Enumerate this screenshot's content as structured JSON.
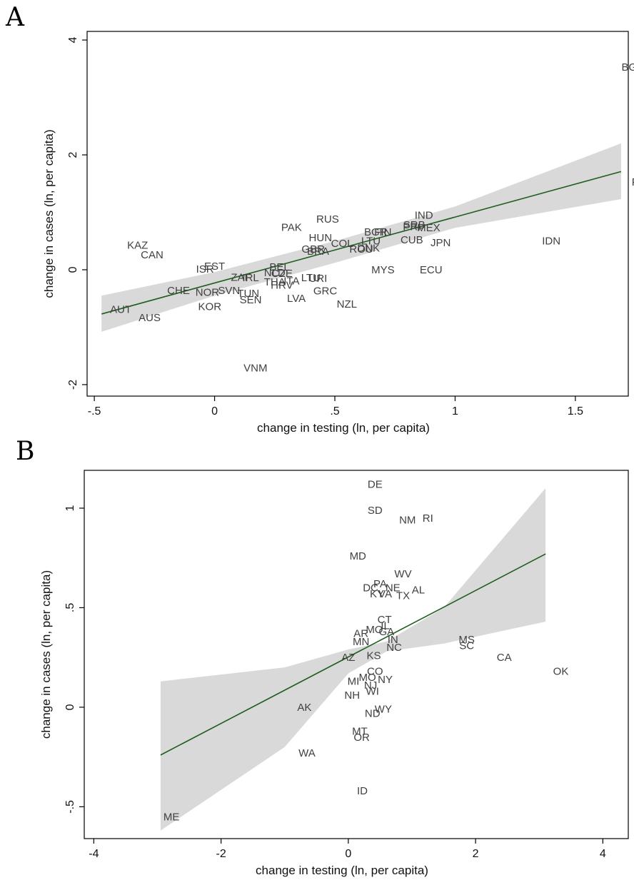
{
  "chart_data": [
    {
      "panel": "A",
      "type": "scatter",
      "xlabel": "change in testing (ln, per capita)",
      "ylabel": "change in cases (ln, per capita)",
      "xlim": [
        -0.53,
        1.72
      ],
      "ylim": [
        -2.2,
        4.15
      ],
      "xticks": [
        -0.5,
        0,
        0.5,
        1,
        1.5
      ],
      "xtick_labels": [
        "-.5",
        "0",
        ".5",
        "1",
        "1.5"
      ],
      "yticks": [
        -2,
        0,
        2,
        4
      ],
      "ytick_labels": [
        "-2",
        "0",
        "2",
        "4"
      ],
      "fit_line": {
        "x": [
          -0.47,
          1.69
        ],
        "y": [
          -0.77,
          1.71
        ]
      },
      "ci_band": {
        "x": [
          -0.47,
          0.0,
          0.5,
          1.0,
          1.69
        ],
        "upper": [
          -0.45,
          -0.04,
          0.5,
          1.1,
          2.2
        ],
        "lower": [
          -1.08,
          -0.45,
          0.12,
          0.73,
          1.23
        ]
      },
      "grid": false,
      "points": [
        {
          "label": "BGD",
          "x": 1.74,
          "y": 3.53
        },
        {
          "label": "PER",
          "x": 1.78,
          "y": 1.53
        },
        {
          "label": "IDN",
          "x": 1.4,
          "y": 0.5
        },
        {
          "label": "IND",
          "x": 0.87,
          "y": 0.95
        },
        {
          "label": "SRB",
          "x": 0.83,
          "y": 0.78
        },
        {
          "label": "PRI",
          "x": 0.82,
          "y": 0.75
        },
        {
          "label": "MEX",
          "x": 0.89,
          "y": 0.73
        },
        {
          "label": "CUB",
          "x": 0.82,
          "y": 0.52
        },
        {
          "label": "JPN",
          "x": 0.94,
          "y": 0.47
        },
        {
          "label": "MYS",
          "x": 0.7,
          "y": 0.0
        },
        {
          "label": "ECU",
          "x": 0.9,
          "y": 0.0
        },
        {
          "label": "RUS",
          "x": 0.47,
          "y": 0.88
        },
        {
          "label": "PAK",
          "x": 0.32,
          "y": 0.74
        },
        {
          "label": "HUN",
          "x": 0.44,
          "y": 0.56
        },
        {
          "label": "BGR",
          "x": 0.67,
          "y": 0.66
        },
        {
          "label": "FIN",
          "x": 0.7,
          "y": 0.66
        },
        {
          "label": "COL",
          "x": 0.53,
          "y": 0.46
        },
        {
          "label": "DNK",
          "x": 0.64,
          "y": 0.38
        },
        {
          "label": "ROU",
          "x": 0.61,
          "y": 0.36
        },
        {
          "label": "LTU",
          "x": 0.65,
          "y": 0.5
        },
        {
          "label": "GBR",
          "x": 0.41,
          "y": 0.36
        },
        {
          "label": "BRA",
          "x": 0.43,
          "y": 0.32
        },
        {
          "label": "KAZ",
          "x": -0.32,
          "y": 0.43
        },
        {
          "label": "CAN",
          "x": -0.26,
          "y": 0.26
        },
        {
          "label": "EST",
          "x": 0.0,
          "y": 0.06
        },
        {
          "label": "ISR",
          "x": -0.04,
          "y": 0.01
        },
        {
          "label": "BEL",
          "x": 0.27,
          "y": 0.05
        },
        {
          "label": "NLD",
          "x": 0.25,
          "y": -0.05
        },
        {
          "label": "CZE",
          "x": 0.28,
          "y": -0.06
        },
        {
          "label": "ZAF",
          "x": 0.11,
          "y": -0.13
        },
        {
          "label": "IRL",
          "x": 0.15,
          "y": -0.14
        },
        {
          "label": "THA",
          "x": 0.25,
          "y": -0.21
        },
        {
          "label": "ITA",
          "x": 0.32,
          "y": -0.19
        },
        {
          "label": "HRV",
          "x": 0.28,
          "y": -0.27
        },
        {
          "label": "LTU",
          "x": 0.4,
          "y": -0.14
        },
        {
          "label": "URI",
          "x": 0.43,
          "y": -0.15
        },
        {
          "label": "GRC",
          "x": 0.46,
          "y": -0.37
        },
        {
          "label": "LVA",
          "x": 0.34,
          "y": -0.5
        },
        {
          "label": "NZL",
          "x": 0.55,
          "y": -0.6
        },
        {
          "label": "CHE",
          "x": -0.15,
          "y": -0.36
        },
        {
          "label": "NOR",
          "x": -0.03,
          "y": -0.39
        },
        {
          "label": "SVN",
          "x": 0.06,
          "y": -0.36
        },
        {
          "label": "TUN",
          "x": 0.14,
          "y": -0.41
        },
        {
          "label": "SEN",
          "x": 0.15,
          "y": -0.52
        },
        {
          "label": "KOR",
          "x": -0.02,
          "y": -0.64
        },
        {
          "label": "AUT",
          "x": -0.39,
          "y": -0.69
        },
        {
          "label": "AUS",
          "x": -0.27,
          "y": -0.83
        },
        {
          "label": "VNM",
          "x": 0.17,
          "y": -1.71
        }
      ]
    },
    {
      "panel": "B",
      "type": "scatter",
      "xlabel": "change in testing (ln, per capita)",
      "ylabel": "change in cases (ln, per capita)",
      "xlim": [
        -4.15,
        4.4
      ],
      "ylim": [
        -0.66,
        1.19
      ],
      "xticks": [
        -4,
        -2,
        0,
        2,
        4
      ],
      "xtick_labels": [
        "-4",
        "-2",
        "0",
        "2",
        "4"
      ],
      "yticks": [
        -0.5,
        0,
        0.5,
        1
      ],
      "ytick_labels": [
        "-.5",
        "0",
        ".5",
        "1"
      ],
      "fit_line": {
        "x": [
          -2.95,
          3.1
        ],
        "y": [
          -0.24,
          0.77
        ]
      },
      "ci_band": {
        "x": [
          -2.95,
          -1.0,
          0.0,
          0.6,
          1.5,
          3.1
        ],
        "upper": [
          0.13,
          0.2,
          0.29,
          0.33,
          0.5,
          1.1
        ],
        "lower": [
          -0.62,
          -0.2,
          0.17,
          0.28,
          0.32,
          0.43
        ]
      },
      "grid": false,
      "points": [
        {
          "label": "DE",
          "x": 0.42,
          "y": 1.12
        },
        {
          "label": "SD",
          "x": 0.42,
          "y": 0.99
        },
        {
          "label": "NM",
          "x": 0.93,
          "y": 0.94
        },
        {
          "label": "RI",
          "x": 1.25,
          "y": 0.95
        },
        {
          "label": "MD",
          "x": 0.15,
          "y": 0.76
        },
        {
          "label": "WV",
          "x": 0.86,
          "y": 0.67
        },
        {
          "label": "PA",
          "x": 0.5,
          "y": 0.62
        },
        {
          "label": "DC",
          "x": 0.35,
          "y": 0.6
        },
        {
          "label": "NE",
          "x": 0.7,
          "y": 0.6
        },
        {
          "label": "KY",
          "x": 0.45,
          "y": 0.57
        },
        {
          "label": "VA",
          "x": 0.58,
          "y": 0.57
        },
        {
          "label": "TX",
          "x": 0.86,
          "y": 0.56
        },
        {
          "label": "AL",
          "x": 1.1,
          "y": 0.59
        },
        {
          "label": "CT",
          "x": 0.57,
          "y": 0.44
        },
        {
          "label": "MO",
          "x": 0.41,
          "y": 0.39
        },
        {
          "label": "GA",
          "x": 0.6,
          "y": 0.38
        },
        {
          "label": "AR",
          "x": 0.2,
          "y": 0.37
        },
        {
          "label": "IL",
          "x": 0.58,
          "y": 0.41
        },
        {
          "label": "MN",
          "x": 0.2,
          "y": 0.33
        },
        {
          "label": "IN",
          "x": 0.7,
          "y": 0.34
        },
        {
          "label": "NC",
          "x": 0.72,
          "y": 0.3
        },
        {
          "label": "AZ",
          "x": 0.0,
          "y": 0.25
        },
        {
          "label": "KS",
          "x": 0.4,
          "y": 0.26
        },
        {
          "label": "MS",
          "x": 1.86,
          "y": 0.34
        },
        {
          "label": "SC",
          "x": 1.86,
          "y": 0.31
        },
        {
          "label": "CA",
          "x": 2.45,
          "y": 0.25
        },
        {
          "label": "OK",
          "x": 3.34,
          "y": 0.18
        },
        {
          "label": "CO",
          "x": 0.42,
          "y": 0.18
        },
        {
          "label": "MO",
          "x": 0.3,
          "y": 0.15
        },
        {
          "label": "NY",
          "x": 0.58,
          "y": 0.14
        },
        {
          "label": "MI",
          "x": 0.08,
          "y": 0.13
        },
        {
          "label": "NJ",
          "x": 0.35,
          "y": 0.11
        },
        {
          "label": "WI",
          "x": 0.38,
          "y": 0.08
        },
        {
          "label": "NH",
          "x": 0.06,
          "y": 0.06
        },
        {
          "label": "AK",
          "x": -0.69,
          "y": 0.0
        },
        {
          "label": "WY",
          "x": 0.55,
          "y": -0.01
        },
        {
          "label": "ND",
          "x": 0.38,
          "y": -0.03
        },
        {
          "label": "MT",
          "x": 0.18,
          "y": -0.12
        },
        {
          "label": "OR",
          "x": 0.21,
          "y": -0.15
        },
        {
          "label": "WA",
          "x": -0.65,
          "y": -0.23
        },
        {
          "label": "ID",
          "x": 0.22,
          "y": -0.42
        },
        {
          "label": "ME",
          "x": -2.78,
          "y": -0.55
        }
      ]
    }
  ],
  "panels": {
    "a_letter": "A",
    "b_letter": "B"
  },
  "colors": {
    "fit_line": "#1e5e1e",
    "ci_band": "#d9d9d9",
    "labels": "#404040",
    "axes": "#000000"
  }
}
